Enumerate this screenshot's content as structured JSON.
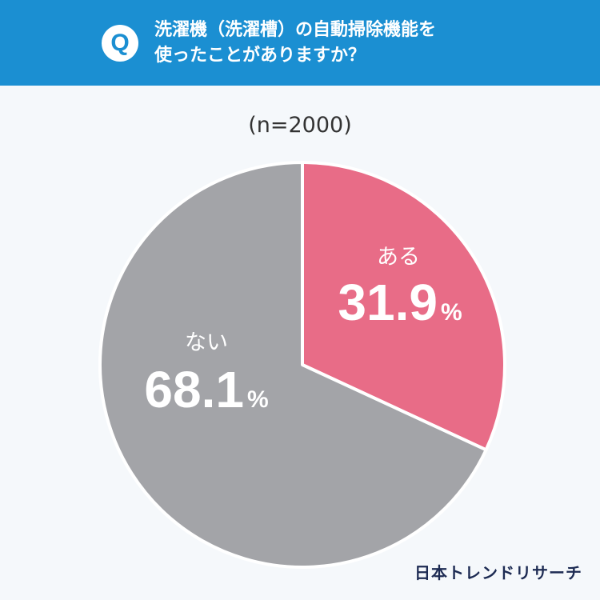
{
  "header": {
    "badge": "Q",
    "question_line1": "洗濯機（洗濯槽）の自動掃除機能を",
    "question_line2": "使ったことがありますか？"
  },
  "sample_label": "(n=2000)",
  "brand": "日本トレンドリサーチ",
  "colors": {
    "header_bg": "#1b8fd2",
    "slice_yes": "#e86c87",
    "slice_no": "#a3a4a8"
  },
  "chart_data": {
    "type": "pie",
    "slices": [
      {
        "label": "ある",
        "value": 31.9,
        "value_text": "31.9",
        "unit": "%",
        "color": "#e86c87"
      },
      {
        "label": "ない",
        "value": 68.1,
        "value_text": "68.1",
        "unit": "%",
        "color": "#a3a4a8"
      }
    ]
  }
}
